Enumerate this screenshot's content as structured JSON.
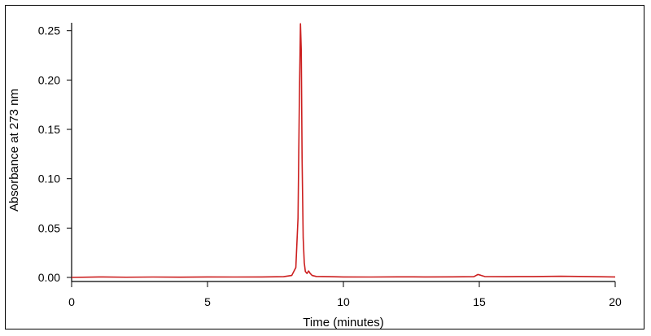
{
  "chart_data": {
    "type": "line",
    "title": "",
    "xlabel": "Time (minutes)",
    "ylabel": "Absorbance at 273 nm",
    "xlim": [
      0,
      20
    ],
    "ylim": [
      0,
      0.26
    ],
    "xticks": [
      0,
      5,
      10,
      15,
      20
    ],
    "xtick_labels": [
      "0",
      "5",
      "10",
      "15",
      "20"
    ],
    "yticks": [
      0,
      0.05,
      0.1,
      0.15,
      0.2,
      0.25
    ],
    "ytick_labels": [
      "0.00",
      "0.05",
      "0.10",
      "0.15",
      "0.20",
      "0.25"
    ],
    "grid": false,
    "legend": "none",
    "series": [
      {
        "color": "#cc1f1f",
        "x": [
          0,
          1.0,
          2.0,
          3.0,
          4.0,
          5.0,
          6.0,
          7.0,
          7.8,
          8.1,
          8.25,
          8.33,
          8.38,
          8.42,
          8.45,
          8.48,
          8.52,
          8.56,
          8.6,
          8.66,
          8.72,
          8.78,
          8.85,
          9.0,
          9.5,
          10.0,
          11.0,
          12.0,
          13.0,
          14.0,
          14.8,
          14.95,
          15.05,
          15.2,
          16.0,
          17.0,
          18.0,
          19.0,
          20.0
        ],
        "y": [
          0.0,
          0.0005,
          0.0002,
          0.0004,
          0.0003,
          0.0005,
          0.0004,
          0.0005,
          0.0008,
          0.002,
          0.01,
          0.06,
          0.18,
          0.257,
          0.23,
          0.12,
          0.04,
          0.015,
          0.006,
          0.004,
          0.0065,
          0.004,
          0.002,
          0.001,
          0.0008,
          0.0005,
          0.0004,
          0.0006,
          0.0005,
          0.0006,
          0.0008,
          0.003,
          0.0022,
          0.0009,
          0.0008,
          0.0009,
          0.0012,
          0.0009,
          0.0005
        ]
      }
    ]
  }
}
